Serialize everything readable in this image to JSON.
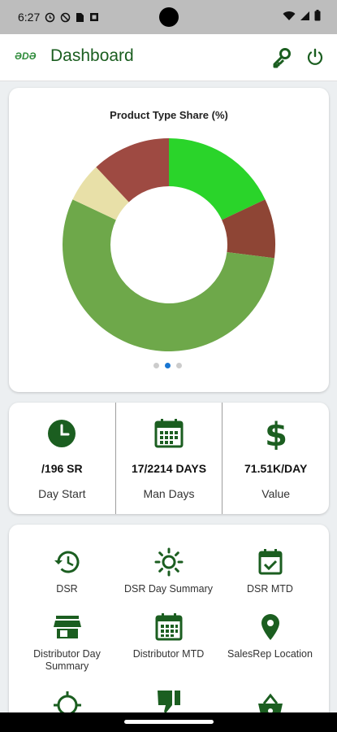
{
  "status_bar": {
    "time": "6:27",
    "icons": [
      "alarm-icon",
      "blocked-icon",
      "sim-icon",
      "notification-icon",
      "wifi-icon",
      "signal-icon",
      "battery-icon"
    ]
  },
  "app_bar": {
    "logo_text": "ƏDƏ",
    "title": "Dashboard",
    "actions": [
      "key-icon",
      "power-icon"
    ]
  },
  "colors": {
    "primary": "#1b5e20",
    "accent_blue": "#1976d2",
    "background": "#eceff1"
  },
  "chart_data": {
    "type": "pie",
    "title": "Product Type Share (%)",
    "categories": [
      "",
      "",
      "",
      "",
      ""
    ],
    "values": [
      18,
      9,
      55,
      6,
      12
    ],
    "colors": [
      "#2ad42a",
      "#8e4535",
      "#6ea84a",
      "#e8e0a8",
      "#9e4a42"
    ],
    "legend": "none",
    "page_indicator": {
      "count": 3,
      "active": 1
    }
  },
  "stats": [
    {
      "icon": "clock-icon",
      "value": "/196 SR",
      "label": "Day Start"
    },
    {
      "icon": "calendar-icon",
      "value": "17/2214 DAYS",
      "label": "Man Days"
    },
    {
      "icon": "dollar-icon",
      "value": "71.51K/DAY",
      "label": "Value"
    }
  ],
  "menu": [
    {
      "icon": "history-icon",
      "label": "DSR"
    },
    {
      "icon": "sun-icon",
      "label": "DSR Day Summary"
    },
    {
      "icon": "calendar-check-icon",
      "label": "DSR MTD"
    },
    {
      "icon": "store-icon",
      "label": "Distributor Day Summary"
    },
    {
      "icon": "calendar-icon",
      "label": "Distributor MTD"
    },
    {
      "icon": "location-icon",
      "label": "SalesRep Location"
    },
    {
      "icon": "crosshair-icon",
      "label": ""
    },
    {
      "icon": "thumb-down-icon",
      "label": ""
    },
    {
      "icon": "basket-icon",
      "label": ""
    }
  ]
}
